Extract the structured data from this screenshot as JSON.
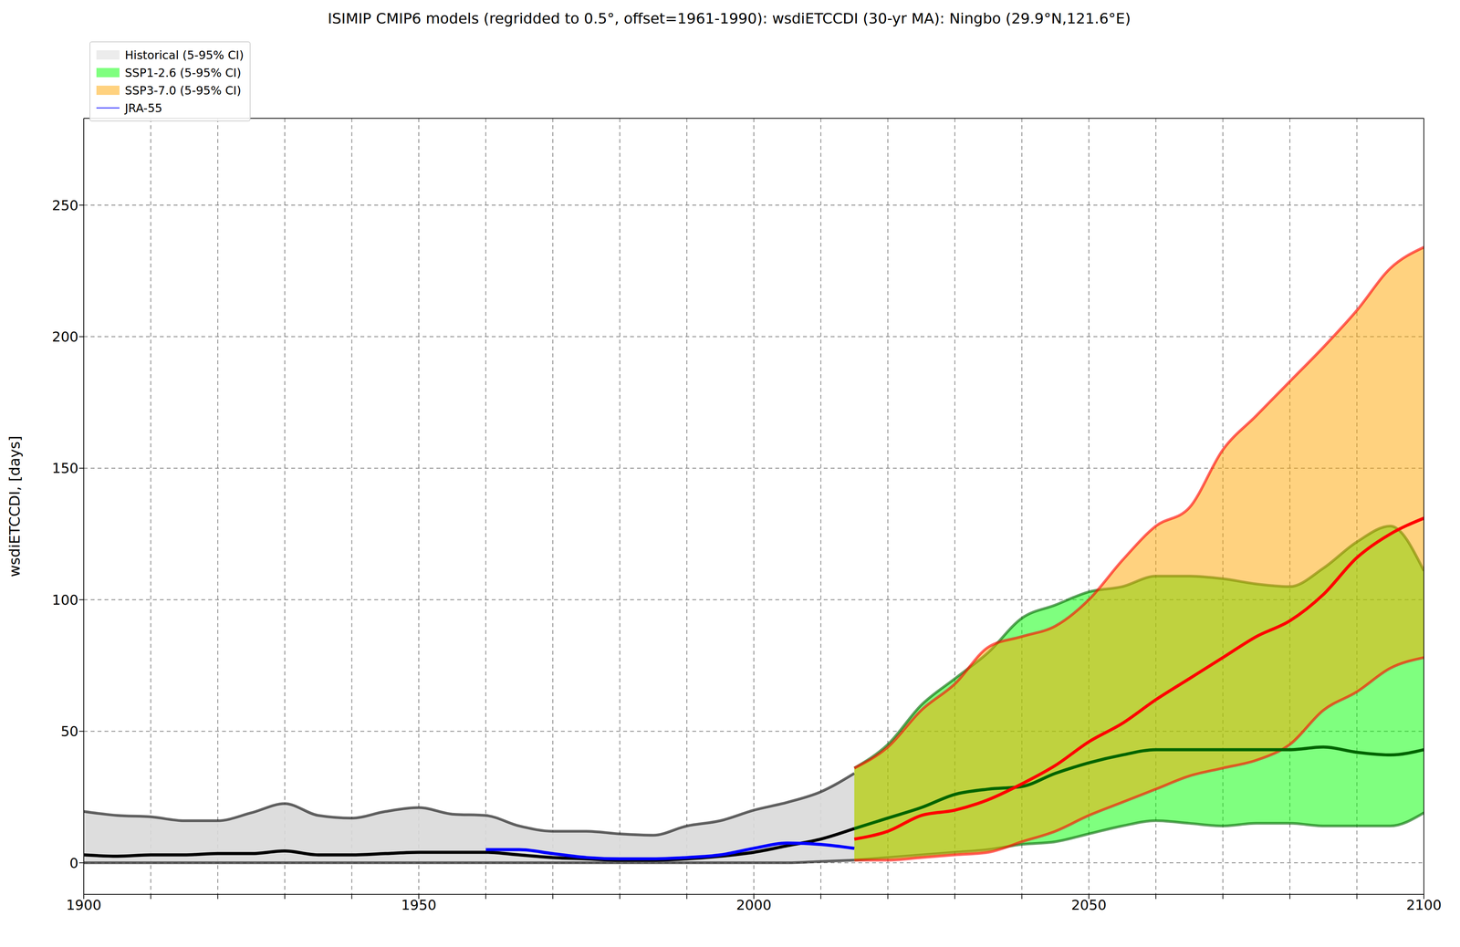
{
  "chart_data": {
    "type": "line",
    "title": "ISIMIP CMIP6 models (regridded to 0.5°, offset=1961-1990): wsdiETCCDI (30-yr MA): Ningbo (29.9°N,121.6°E)",
    "y_label": "wsdiETCCDI, [days]",
    "xlim": [
      1900,
      2100
    ],
    "xticks": [
      1900,
      {
        "value": 1910,
        "label": null
      },
      {
        "value": 1920,
        "label": null
      },
      {
        "value": 1930,
        "label": null
      },
      {
        "value": 1940,
        "label": null
      },
      1950,
      {
        "value": 1960,
        "label": null
      },
      {
        "value": 1970,
        "label": null
      },
      {
        "value": 1980,
        "label": null
      },
      {
        "value": 1990,
        "label": null
      },
      2000,
      {
        "value": 2010,
        "label": null
      },
      {
        "value": 2020,
        "label": null
      },
      {
        "value": 2030,
        "label": null
      },
      {
        "value": 2040,
        "label": null
      },
      2050,
      {
        "value": 2060,
        "label": null
      },
      {
        "value": 2070,
        "label": null
      },
      {
        "value": 2080,
        "label": null
      },
      {
        "value": 2090,
        "label": null
      },
      2100
    ],
    "ylim": [
      -12,
      283
    ],
    "yticks": [
      0,
      50,
      100,
      150,
      200,
      250
    ],
    "grid": true,
    "legend": "upper left",
    "series": [
      {
        "name": "Historical (5-95% CI)",
        "type": "band",
        "color": "#d9d9d9",
        "x": [
          1900,
          1905,
          1910,
          1915,
          1920,
          1925,
          1930,
          1935,
          1940,
          1945,
          1950,
          1955,
          1960,
          1965,
          1970,
          1975,
          1980,
          1985,
          1990,
          1995,
          2000,
          2005,
          2010,
          2015
        ],
        "lower": [
          0,
          0,
          0,
          0,
          0,
          0,
          0,
          0,
          0,
          0,
          0,
          0,
          0,
          0,
          0,
          0,
          0,
          0,
          0,
          0,
          0,
          0,
          0.5,
          1
        ],
        "upper": [
          19.5,
          18,
          17.5,
          16,
          16,
          19,
          22.5,
          18,
          17,
          19.5,
          21,
          18.5,
          18,
          14,
          12,
          12,
          11,
          10.5,
          14,
          16,
          20,
          23,
          27,
          34
        ]
      },
      {
        "name": "SSP1-2.6 (5-95% CI)",
        "type": "band",
        "color": "#00ff00",
        "x": [
          2015,
          2020,
          2025,
          2030,
          2035,
          2040,
          2045,
          2050,
          2055,
          2060,
          2065,
          2070,
          2075,
          2080,
          2085,
          2090,
          2095,
          2100
        ],
        "lower": [
          1,
          2,
          3,
          4,
          5,
          7,
          8,
          11,
          14,
          16,
          15,
          14,
          15,
          15,
          14,
          14,
          14,
          19
        ],
        "upper": [
          36,
          45,
          60,
          70,
          80,
          93,
          98,
          103,
          105,
          109,
          109,
          108,
          106,
          105,
          112,
          122,
          128,
          111
        ]
      },
      {
        "name": "SSP3-7.0 (5-95% CI)",
        "type": "band",
        "color": "#ffa500",
        "x": [
          2015,
          2020,
          2025,
          2030,
          2035,
          2040,
          2045,
          2050,
          2055,
          2060,
          2065,
          2070,
          2075,
          2080,
          2085,
          2090,
          2095,
          2100
        ],
        "lower": [
          1,
          1,
          2,
          3,
          4,
          8,
          12,
          18,
          23,
          28,
          33,
          36,
          39,
          45,
          58,
          65,
          74,
          78
        ],
        "upper": [
          36,
          44,
          58,
          68,
          82,
          86,
          90,
          100,
          115,
          128,
          135,
          157,
          170,
          183,
          196,
          210,
          226,
          234
        ]
      },
      {
        "type": "line",
        "color": "#000000",
        "x": [
          1900,
          1905,
          1910,
          1915,
          1920,
          1925,
          1930,
          1935,
          1940,
          1945,
          1950,
          1955,
          1960,
          1965,
          1970,
          1975,
          1980,
          1985,
          1990,
          1995,
          2000,
          2005,
          2010,
          2015
        ],
        "values": [
          3,
          2.5,
          3,
          3,
          3.5,
          3.5,
          4.5,
          3,
          3,
          3.5,
          4,
          4,
          4,
          3,
          2,
          1.5,
          1,
          1,
          1.5,
          2.5,
          4,
          6.5,
          9,
          13
        ]
      },
      {
        "type": "line",
        "color": "#006400",
        "x": [
          2015,
          2020,
          2025,
          2030,
          2035,
          2040,
          2045,
          2050,
          2055,
          2060,
          2065,
          2070,
          2075,
          2080,
          2085,
          2090,
          2095,
          2100
        ],
        "values": [
          13,
          17,
          21,
          26,
          28,
          29,
          34,
          38,
          41,
          43,
          43,
          43,
          43,
          43,
          44,
          42,
          41,
          43
        ]
      },
      {
        "type": "line",
        "color": "#ff0000",
        "x": [
          2015,
          2020,
          2025,
          2030,
          2035,
          2040,
          2045,
          2050,
          2055,
          2060,
          2065,
          2070,
          2075,
          2080,
          2085,
          2090,
          2095,
          2100
        ],
        "values": [
          9,
          12,
          18,
          20,
          24,
          30,
          37,
          46,
          53,
          62,
          70,
          78,
          86,
          92,
          102,
          116,
          125,
          131
        ]
      },
      {
        "name": "JRA-55",
        "type": "line",
        "color": "#0000ff",
        "x": [
          1960,
          1965,
          1970,
          1975,
          1980,
          1985,
          1990,
          1995,
          2000,
          2005,
          2010,
          2015
        ],
        "values": [
          5,
          5,
          3.5,
          2,
          1.5,
          1.5,
          2,
          3,
          5.5,
          7.5,
          7,
          5.5
        ]
      }
    ]
  }
}
